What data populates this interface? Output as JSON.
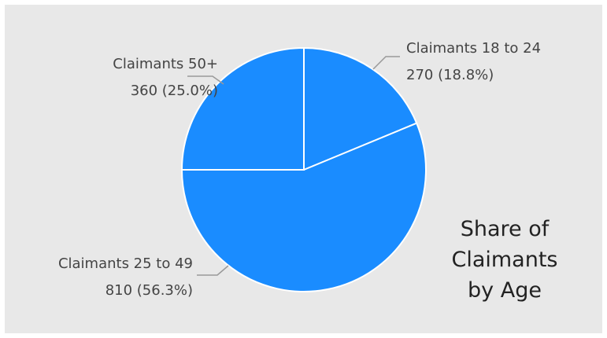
{
  "chart_data": {
    "type": "pie",
    "title": "Share of Claimants by Age",
    "categories": [
      "Claimants 18 to 24",
      "Claimants 25 to 49",
      "Claimants 50+"
    ],
    "values": [
      270,
      810,
      360
    ],
    "value_labels": [
      "270 (18.8%)",
      "810 (56.3%)",
      "360 (25.0%)"
    ],
    "color": "#1a8cff"
  }
}
